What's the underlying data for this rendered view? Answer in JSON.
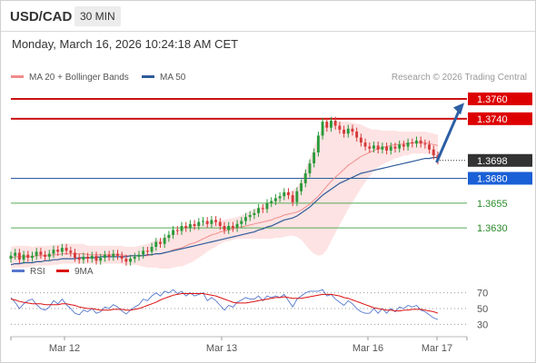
{
  "header": {
    "pair": "USD/CAD",
    "timeframe": "30 MIN"
  },
  "datetime": "Monday, March 16, 2026 10:24:18 AM CET",
  "credit": "Research © 2026 Trading Central",
  "legend": {
    "ma20": {
      "label": "MA 20 + Bollinger Bands",
      "color": "#f08c8c"
    },
    "ma50": {
      "label": "MA 50",
      "color": "#2e5b9a"
    }
  },
  "rsi_legend": {
    "rsi": {
      "label": "RSI",
      "color": "#5577cc"
    },
    "ma9": {
      "label": "9MA",
      "color": "#dd1111"
    }
  },
  "colors": {
    "up": "#2a9a3a",
    "down": "#d63a3a",
    "resistance": "#cc1111",
    "support_primary": "#2e5b9a",
    "support_secondary": "#55aa55",
    "current": "#333333",
    "arrow": "#2c5fa3"
  },
  "chart_data": [
    {
      "type": "candlestick",
      "x_ticks": [
        "Mar 12",
        "Mar 13",
        "Mar 16",
        "Mar 17"
      ],
      "ylim": [
        1.36,
        1.377
      ],
      "current_price": {
        "value": 1.3698,
        "label": "1.3698"
      },
      "levels": [
        {
          "value": 1.376,
          "label": "1.3760",
          "kind": "resistance",
          "style": "badge"
        },
        {
          "value": 1.374,
          "label": "1.3740",
          "kind": "resistance",
          "style": "badge"
        },
        {
          "value": 1.368,
          "label": "1.3680",
          "kind": "support_primary",
          "style": "badge"
        },
        {
          "value": 1.3655,
          "label": "1.3655",
          "kind": "support_secondary",
          "style": "text"
        },
        {
          "value": 1.363,
          "label": "1.3630",
          "kind": "support_secondary",
          "style": "text"
        }
      ],
      "projection": {
        "from": 1.3697,
        "to": 1.3756
      },
      "closes": [
        1.3602,
        1.3605,
        1.3598,
        1.3603,
        1.36,
        1.3602,
        1.3606,
        1.3603,
        1.3601,
        1.3604,
        1.3608,
        1.3606,
        1.361,
        1.3607,
        1.3605,
        1.36,
        1.3598,
        1.3601,
        1.3599,
        1.3602,
        1.3597,
        1.36,
        1.3603,
        1.3601,
        1.3604,
        1.3602,
        1.3599,
        1.3596,
        1.3599,
        1.3601,
        1.3603,
        1.3607,
        1.3606,
        1.3611,
        1.3616,
        1.3614,
        1.362,
        1.3623,
        1.3628,
        1.3627,
        1.3632,
        1.363,
        1.3634,
        1.3632,
        1.3636,
        1.3637,
        1.3634,
        1.3638,
        1.3636,
        1.3632,
        1.3628,
        1.3632,
        1.363,
        1.3634,
        1.3637,
        1.3641,
        1.3643,
        1.3645,
        1.365,
        1.3649,
        1.3655,
        1.3657,
        1.366,
        1.3662,
        1.3666,
        1.3663,
        1.3656,
        1.3667,
        1.3675,
        1.3685,
        1.3695,
        1.3706,
        1.3723,
        1.3737,
        1.3731,
        1.3738,
        1.3733,
        1.3729,
        1.3725,
        1.373,
        1.3727,
        1.3721,
        1.3716,
        1.3712,
        1.371,
        1.3713,
        1.3709,
        1.3712,
        1.3708,
        1.3712,
        1.371,
        1.3714,
        1.3712,
        1.3716,
        1.3715,
        1.3718,
        1.3715,
        1.3714,
        1.3709,
        1.3703,
        1.3698
      ],
      "ma20": [
        1.36,
        1.3601,
        1.3601,
        1.3601,
        1.3601,
        1.3601,
        1.3602,
        1.3602,
        1.3602,
        1.3602,
        1.3603,
        1.3603,
        1.3604,
        1.3604,
        1.3604,
        1.3604,
        1.3604,
        1.3604,
        1.3603,
        1.3603,
        1.3603,
        1.3603,
        1.3603,
        1.3603,
        1.3603,
        1.3603,
        1.3603,
        1.3602,
        1.3602,
        1.3602,
        1.3602,
        1.3602,
        1.3602,
        1.3603,
        1.3604,
        1.3604,
        1.3605,
        1.3606,
        1.3608,
        1.3609,
        1.361,
        1.3612,
        1.3614,
        1.3615,
        1.3617,
        1.3619,
        1.3621,
        1.3623,
        1.3624,
        1.3626,
        1.3627,
        1.3628,
        1.3629,
        1.363,
        1.3631,
        1.3632,
        1.3633,
        1.3634,
        1.3635,
        1.3636,
        1.3637,
        1.3638,
        1.364,
        1.3641,
        1.3643,
        1.3644,
        1.3645,
        1.3646,
        1.3648,
        1.3651,
        1.3654,
        1.3658,
        1.3662,
        1.3667,
        1.3672,
        1.3677,
        1.3681,
        1.3685,
        1.3689,
        1.3693,
        1.3696,
        1.3699,
        1.3702,
        1.3704,
        1.3706,
        1.3708,
        1.371,
        1.3711,
        1.3712,
        1.3713,
        1.3714,
        1.3714,
        1.3715,
        1.3715,
        1.3716,
        1.3716,
        1.3716,
        1.3716,
        1.3715,
        1.3714,
        1.3713
      ],
      "ma50": [
        1.3593,
        1.3594,
        1.3594,
        1.3595,
        1.3595,
        1.3595,
        1.3596,
        1.3596,
        1.3597,
        1.3597,
        1.3598,
        1.3598,
        1.3599,
        1.3599,
        1.3599,
        1.3599,
        1.36,
        1.36,
        1.36,
        1.36,
        1.36,
        1.3601,
        1.3601,
        1.3601,
        1.3601,
        1.3601,
        1.3601,
        1.3601,
        1.3602,
        1.3602,
        1.3602,
        1.3602,
        1.3603,
        1.3603,
        1.3604,
        1.3604,
        1.3605,
        1.3606,
        1.3607,
        1.3608,
        1.3609,
        1.361,
        1.3611,
        1.3612,
        1.3613,
        1.3614,
        1.3615,
        1.3616,
        1.3617,
        1.3618,
        1.3619,
        1.362,
        1.3621,
        1.3622,
        1.3623,
        1.3624,
        1.3625,
        1.3626,
        1.3628,
        1.3629,
        1.3631,
        1.3632,
        1.3634,
        1.3636,
        1.3638,
        1.3639,
        1.364,
        1.3642,
        1.3645,
        1.3648,
        1.3651,
        1.3655,
        1.3659,
        1.3663,
        1.3666,
        1.3669,
        1.3672,
        1.3675,
        1.3677,
        1.3679,
        1.3681,
        1.3683,
        1.3685,
        1.3686,
        1.3687,
        1.3688,
        1.3689,
        1.369,
        1.3691,
        1.3692,
        1.3693,
        1.3694,
        1.3695,
        1.3696,
        1.3697,
        1.3698,
        1.3699,
        1.37,
        1.37,
        1.3701,
        1.3701
      ],
      "bb_halfwidth": [
        0.0011,
        0.0011,
        0.0011,
        0.0011,
        0.0011,
        0.001,
        0.001,
        0.001,
        0.001,
        0.001,
        0.001,
        0.001,
        0.001,
        0.001,
        0.001,
        0.001,
        0.001,
        0.001,
        0.0009,
        0.0009,
        0.0009,
        0.0009,
        0.0009,
        0.0009,
        0.0009,
        0.0009,
        0.0009,
        0.0009,
        0.0009,
        0.0009,
        0.001,
        0.0011,
        0.0012,
        0.0013,
        0.0014,
        0.0015,
        0.0016,
        0.0017,
        0.0018,
        0.0018,
        0.0019,
        0.0019,
        0.0019,
        0.0018,
        0.0017,
        0.0016,
        0.0015,
        0.0014,
        0.0013,
        0.0012,
        0.0011,
        0.0011,
        0.0011,
        0.0011,
        0.0012,
        0.0013,
        0.0014,
        0.0015,
        0.0016,
        0.0017,
        0.0018,
        0.0019,
        0.002,
        0.0021,
        0.0022,
        0.0022,
        0.0023,
        0.0025,
        0.003,
        0.0038,
        0.0046,
        0.0054,
        0.006,
        0.0064,
        0.0064,
        0.006,
        0.0056,
        0.0052,
        0.0048,
        0.0044,
        0.004,
        0.0036,
        0.0032,
        0.0028,
        0.0024,
        0.0021,
        0.0019,
        0.0017,
        0.0016,
        0.0015,
        0.0014,
        0.0013,
        0.0012,
        0.0012,
        0.0011,
        0.0011,
        0.0011,
        0.0011,
        0.0011,
        0.0011,
        0.0011
      ]
    },
    {
      "type": "line",
      "name": "RSI",
      "ylim": [
        20,
        80
      ],
      "y_ticks": [
        70,
        50,
        30
      ],
      "rsi": [
        64,
        58,
        50,
        56,
        60,
        62,
        55,
        50,
        48,
        52,
        60,
        56,
        62,
        55,
        50,
        44,
        42,
        48,
        46,
        50,
        44,
        46,
        52,
        50,
        55,
        52,
        47,
        43,
        48,
        52,
        55,
        62,
        60,
        66,
        70,
        66,
        72,
        70,
        74,
        69,
        72,
        66,
        70,
        66,
        68,
        70,
        60,
        64,
        60,
        54,
        48,
        54,
        52,
        58,
        61,
        64,
        62,
        62,
        66,
        60,
        66,
        64,
        66,
        64,
        68,
        60,
        52,
        62,
        66,
        70,
        72,
        72,
        72,
        74,
        66,
        68,
        62,
        58,
        54,
        60,
        56,
        50,
        46,
        44,
        44,
        50,
        44,
        50,
        44,
        50,
        46,
        52,
        50,
        54,
        52,
        54,
        48,
        46,
        42,
        38,
        36
      ],
      "ma9": [
        62,
        61,
        59,
        58,
        57,
        56,
        56,
        56,
        55,
        55,
        55,
        55,
        56,
        56,
        55,
        54,
        52,
        51,
        50,
        50,
        49,
        48,
        48,
        48,
        49,
        49,
        49,
        48,
        48,
        49,
        50,
        52,
        54,
        56,
        58,
        61,
        63,
        65,
        67,
        68,
        69,
        69,
        69,
        69,
        69,
        69,
        68,
        67,
        66,
        64,
        62,
        60,
        58,
        57,
        57,
        57,
        58,
        59,
        60,
        61,
        62,
        63,
        64,
        64,
        65,
        64,
        63,
        63,
        63,
        64,
        65,
        66,
        67,
        68,
        68,
        68,
        67,
        66,
        64,
        63,
        61,
        59,
        57,
        55,
        53,
        51,
        50,
        49,
        48,
        48,
        47,
        47,
        48,
        48,
        49,
        49,
        49,
        48,
        47,
        46,
        44
      ]
    }
  ]
}
